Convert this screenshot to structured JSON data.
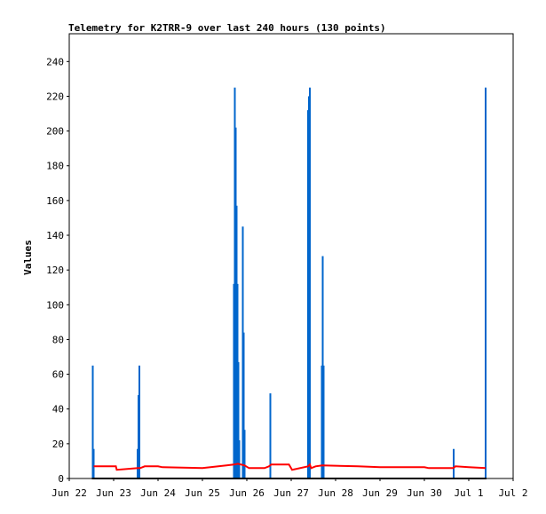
{
  "chart_data": {
    "type": "bar",
    "title": "Telemetry for K2TRR-9 over last 240 hours (130 points)",
    "xlabel": "",
    "ylabel": "Values",
    "x_axis": {
      "unit": "days",
      "range": [
        0,
        10
      ],
      "tick_labels": [
        "Jun 22",
        "Jun 23",
        "Jun 24",
        "Jun 25",
        "Jun 26",
        "Jun 27",
        "Jun 28",
        "Jun 29",
        "Jun 30",
        "Jul 1",
        "Jul 2"
      ]
    },
    "y_axis": {
      "ylim": [
        0,
        256
      ],
      "ticks": [
        0,
        20,
        40,
        60,
        80,
        100,
        120,
        140,
        160,
        180,
        200,
        220,
        240
      ]
    },
    "grid": false,
    "legend": "none",
    "colors": {
      "bars": "#0066cc",
      "line": "#ff0000",
      "baseline": "#000000",
      "frame": "#000000"
    },
    "series": [
      {
        "type": "bar",
        "values": [
          {
            "x": 0.53,
            "y": 65
          },
          {
            "x": 0.55,
            "y": 17
          },
          {
            "x": 1.54,
            "y": 17
          },
          {
            "x": 1.56,
            "y": 48
          },
          {
            "x": 1.58,
            "y": 65
          },
          {
            "x": 3.71,
            "y": 112
          },
          {
            "x": 3.73,
            "y": 225
          },
          {
            "x": 3.75,
            "y": 202
          },
          {
            "x": 3.77,
            "y": 157
          },
          {
            "x": 3.79,
            "y": 112
          },
          {
            "x": 3.81,
            "y": 67
          },
          {
            "x": 3.83,
            "y": 22
          },
          {
            "x": 3.91,
            "y": 145
          },
          {
            "x": 3.93,
            "y": 84
          },
          {
            "x": 3.95,
            "y": 28
          },
          {
            "x": 4.53,
            "y": 49
          },
          {
            "x": 5.38,
            "y": 212
          },
          {
            "x": 5.4,
            "y": 220
          },
          {
            "x": 5.42,
            "y": 225
          },
          {
            "x": 5.69,
            "y": 65
          },
          {
            "x": 5.71,
            "y": 128
          },
          {
            "x": 5.73,
            "y": 65
          },
          {
            "x": 8.66,
            "y": 17
          },
          {
            "x": 9.38,
            "y": 225
          }
        ]
      },
      {
        "type": "line",
        "points": [
          {
            "x": 0.55,
            "y": 7
          },
          {
            "x": 1.05,
            "y": 7
          },
          {
            "x": 1.07,
            "y": 5
          },
          {
            "x": 1.55,
            "y": 6
          },
          {
            "x": 1.6,
            "y": 6
          },
          {
            "x": 1.7,
            "y": 7
          },
          {
            "x": 2.0,
            "y": 7
          },
          {
            "x": 2.1,
            "y": 6.5
          },
          {
            "x": 3.0,
            "y": 6
          },
          {
            "x": 3.71,
            "y": 8
          },
          {
            "x": 3.8,
            "y": 8.5
          },
          {
            "x": 3.95,
            "y": 7.5
          },
          {
            "x": 4.05,
            "y": 6
          },
          {
            "x": 4.4,
            "y": 6
          },
          {
            "x": 4.5,
            "y": 7
          },
          {
            "x": 4.55,
            "y": 8
          },
          {
            "x": 4.95,
            "y": 8
          },
          {
            "x": 5.02,
            "y": 5
          },
          {
            "x": 5.38,
            "y": 7
          },
          {
            "x": 5.42,
            "y": 8
          },
          {
            "x": 5.45,
            "y": 6
          },
          {
            "x": 5.55,
            "y": 7
          },
          {
            "x": 5.7,
            "y": 7.5
          },
          {
            "x": 6.5,
            "y": 7
          },
          {
            "x": 7.0,
            "y": 6.5
          },
          {
            "x": 8.0,
            "y": 6.5
          },
          {
            "x": 8.1,
            "y": 6
          },
          {
            "x": 8.65,
            "y": 6
          },
          {
            "x": 8.7,
            "y": 7
          },
          {
            "x": 9.0,
            "y": 6.5
          },
          {
            "x": 9.38,
            "y": 6
          }
        ]
      }
    ]
  }
}
